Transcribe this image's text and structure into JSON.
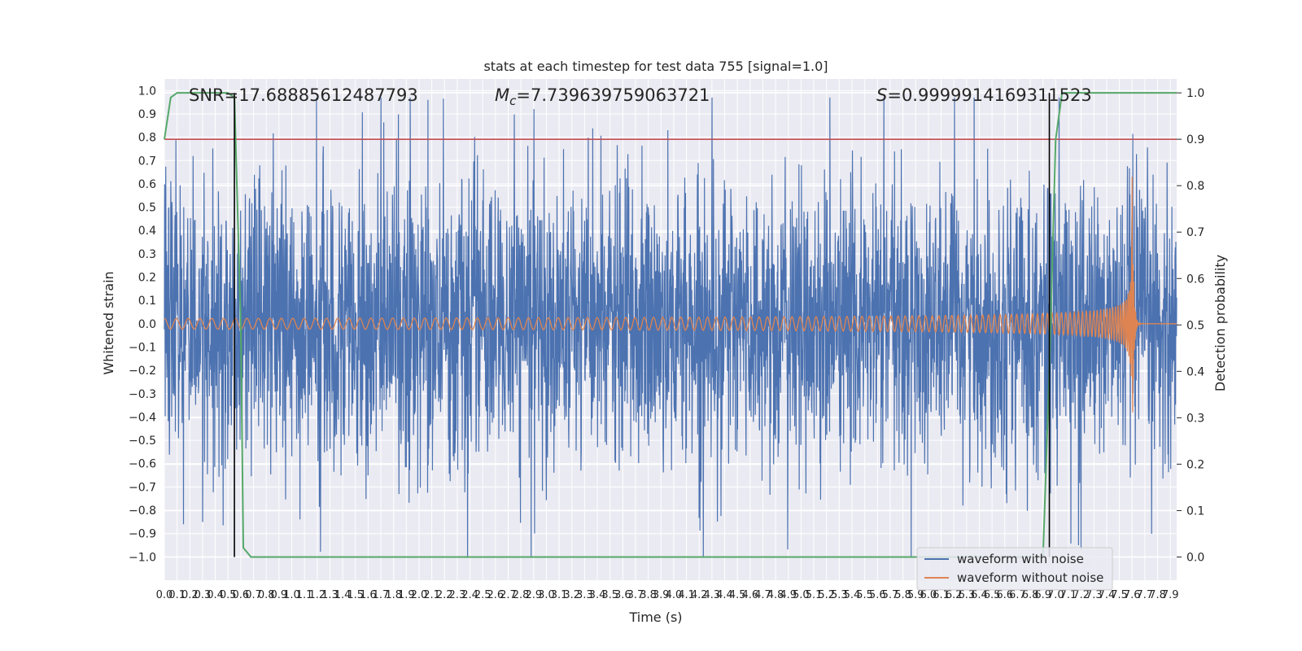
{
  "chart_data": {
    "type": "line",
    "title": "stats at each timestep for test data 755 [signal=1.0]",
    "xlabel": "Time (s)",
    "ylabel_left": "Whitened strain",
    "ylabel_right": "Detection probability",
    "xlim": [
      0.0,
      7.95
    ],
    "ylim_left": [
      -1.1,
      1.05
    ],
    "ylim_right": [
      -0.05,
      1.03
    ],
    "x_ticks": [
      "0.0",
      "0.1",
      "0.2",
      "0.3",
      "0.4",
      "0.5",
      "0.6",
      "0.7",
      "0.8",
      "0.9",
      "1.0",
      "1.1",
      "1.2",
      "1.3",
      "1.4",
      "1.5",
      "1.6",
      "1.7",
      "1.8",
      "1.9",
      "2.0",
      "2.1",
      "2.2",
      "2.3",
      "2.4",
      "2.5",
      "2.6",
      "2.7",
      "2.8",
      "2.9",
      "3.0",
      "3.1",
      "3.2",
      "3.3",
      "3.4",
      "3.5",
      "3.6",
      "3.7",
      "3.8",
      "3.9",
      "4.0",
      "4.1",
      "4.2",
      "4.3",
      "4.4",
      "4.5",
      "4.6",
      "4.7",
      "4.8",
      "4.9",
      "5.0",
      "5.1",
      "5.2",
      "5.3",
      "5.4",
      "5.5",
      "5.6",
      "5.7",
      "5.8",
      "5.9",
      "6.0",
      "6.1",
      "6.2",
      "6.3",
      "6.4",
      "6.5",
      "6.6",
      "6.7",
      "6.8",
      "6.9",
      "7.0",
      "7.1",
      "7.2",
      "7.3",
      "7.4",
      "7.5",
      "7.6",
      "7.7",
      "7.8",
      "7.9"
    ],
    "y_ticks_left": [
      "1.0",
      "0.9",
      "0.8",
      "0.7",
      "0.6",
      "0.5",
      "0.4",
      "0.3",
      "0.2",
      "0.1",
      "0.0",
      "−0.1",
      "−0.2",
      "−0.3",
      "−0.4",
      "−0.5",
      "−0.6",
      "−0.7",
      "−0.8",
      "−0.9",
      "−1.0"
    ],
    "y_ticks_right": [
      "1.0",
      "0.9",
      "0.8",
      "0.7",
      "0.6",
      "0.5",
      "0.4",
      "0.3",
      "0.2",
      "0.1",
      "0.0"
    ],
    "annotations": {
      "snr": "SNR=17.68885612487793",
      "mc_symbol": "M",
      "mc_subscript": "c",
      "mc_value": "=7.739639759063721",
      "s_symbol": "S",
      "s_value": "=0.9999914169311523"
    },
    "threshold_line": {
      "axis": "right",
      "value": 0.9,
      "color": "#c44e52"
    },
    "vertical_lines": [
      0.55,
      6.95
    ],
    "series": [
      {
        "name": "waveform with noise",
        "axis": "left",
        "color": "#4c72b0",
        "kind": "noise",
        "typical_amplitude": 0.3,
        "min": -1.0,
        "max": 0.97,
        "peaks": [
          [
            1.7,
            0.97
          ],
          [
            2.07,
            0.96
          ],
          [
            4.3,
            0.97
          ],
          [
            5.65,
            0.97
          ],
          [
            2.88,
            -1.0
          ],
          [
            0.15,
            -0.86
          ],
          [
            0.3,
            -0.85
          ],
          [
            7.2,
            -0.97
          ],
          [
            7.18,
            -0.95
          ]
        ]
      },
      {
        "name": "waveform without noise",
        "axis": "left",
        "color": "#dd8452",
        "kind": "chirp",
        "merger_time": 7.6,
        "initial_amplitude": 0.022,
        "peak_amplitude": 0.64,
        "min_amplitude": -0.46
      },
      {
        "name": "detection probability",
        "axis": "right",
        "color": "#55a868",
        "x": [
          0.0,
          0.05,
          0.1,
          0.5,
          0.55,
          0.6,
          0.62,
          0.68,
          6.9,
          6.95,
          7.0,
          7.05,
          7.1,
          7.95
        ],
        "values": [
          0.9,
          0.99,
          1.0,
          1.0,
          0.99,
          0.5,
          0.02,
          0.0,
          0.0,
          0.4,
          0.9,
          1.0,
          1.0,
          1.0
        ]
      }
    ],
    "legend": {
      "placement": "lower-right",
      "entries": [
        {
          "label": "waveform with noise",
          "color": "#4c72b0"
        },
        {
          "label": "waveform without noise",
          "color": "#dd8452"
        }
      ]
    },
    "grid": true,
    "background": "#eaeaf2"
  }
}
